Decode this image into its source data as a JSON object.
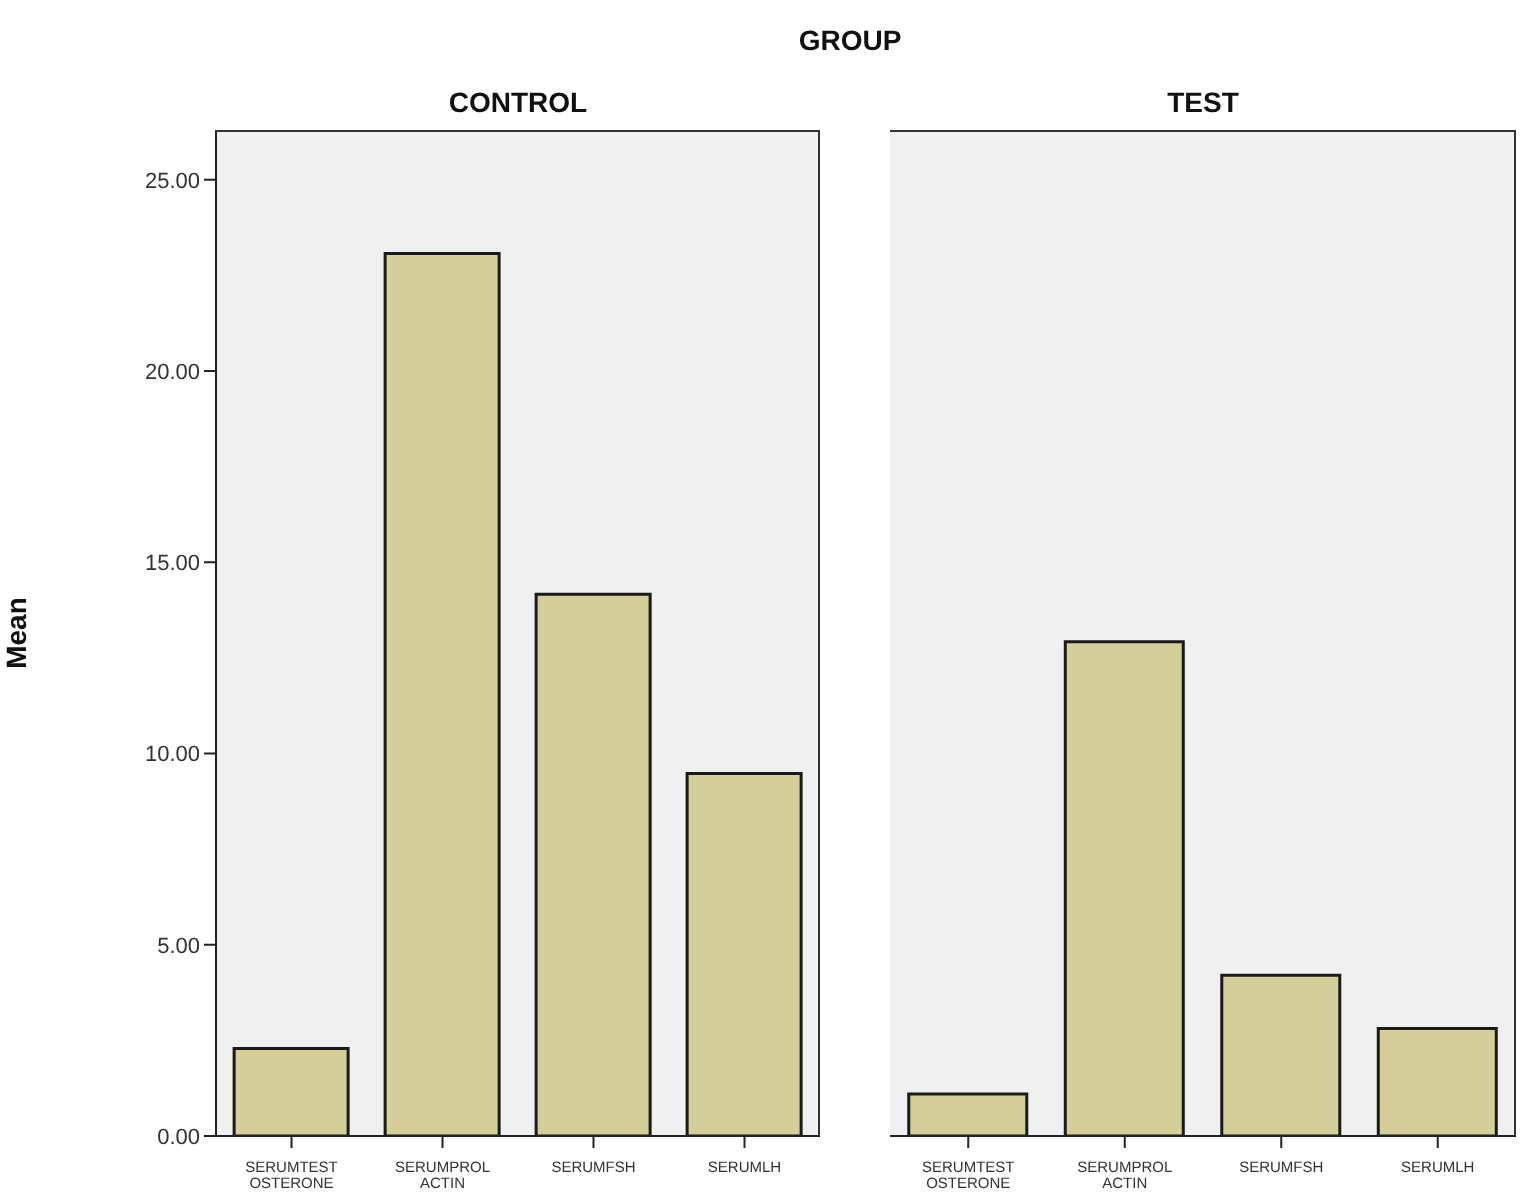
{
  "chart_data": [
    {
      "type": "bar",
      "title": "CONTROL",
      "ylabel": "Mean",
      "annotations": [
        "GROUP"
      ],
      "categories": [
        "SERUMTESTOSTERONE",
        "SERUMPROLACTIN",
        "SERUMFSH",
        "SERUMLH"
      ],
      "values": [
        2.29,
        23.07,
        14.16,
        9.48
      ],
      "color": "#d4cf98",
      "ylim": [
        0,
        26.3
      ],
      "yticks": [
        {
          "value": 0,
          "label": "0.00"
        },
        {
          "value": 5,
          "label": "5.00"
        },
        {
          "value": 10,
          "label": "10.00"
        },
        {
          "value": 15,
          "label": "15.00"
        },
        {
          "value": 20,
          "label": "20.00"
        },
        {
          "value": 25,
          "label": "25.00"
        }
      ],
      "grid": false
    },
    {
      "type": "bar",
      "title": "TEST",
      "categories": [
        "SERUMTESTOSTERONE",
        "SERUMPROLACTIN",
        "SERUMFSH",
        "SERUMLH"
      ],
      "values": [
        1.1,
        12.92,
        4.2,
        2.81
      ],
      "color": "#d4cf98",
      "ylim": [
        0,
        26.3
      ],
      "tick_labels": "x",
      "grid": false
    }
  ]
}
